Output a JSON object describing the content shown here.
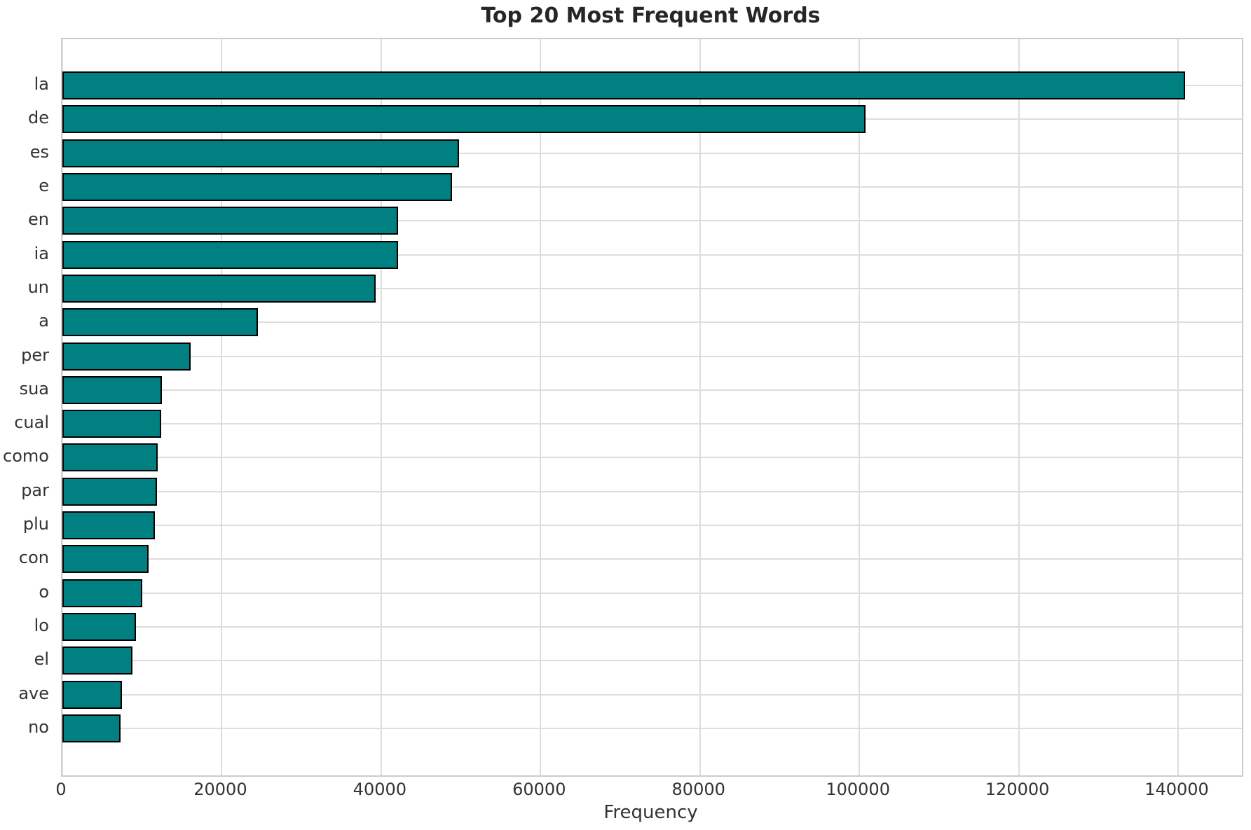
{
  "title": "Top 20 Most Frequent Words",
  "xlabel": "Frequency",
  "colors": {
    "bar_fill": "#008080",
    "bar_edge": "#000000",
    "gridline": "#dddddd",
    "spine": "#cccccc",
    "title_text": "#262626",
    "tick_text": "#333333",
    "background": "#ffffff"
  },
  "chart_data": {
    "type": "bar",
    "orientation": "horizontal",
    "title": "Top 20 Most Frequent Words",
    "xlabel": "Frequency",
    "ylabel": "",
    "grid": true,
    "legend": false,
    "categories": [
      "la",
      "de",
      "es",
      "e",
      "en",
      "ia",
      "un",
      "a",
      "per",
      "sua",
      "cual",
      "como",
      "par",
      "plu",
      "con",
      "o",
      "lo",
      "el",
      "ave",
      "no"
    ],
    "values": [
      140900,
      100800,
      49800,
      48900,
      42100,
      42100,
      39300,
      24500,
      16100,
      12500,
      12400,
      12000,
      11900,
      11600,
      10800,
      10000,
      9200,
      8800,
      7500,
      7300
    ],
    "xlim": [
      0,
      148000
    ],
    "xticks": [
      0,
      20000,
      40000,
      60000,
      80000,
      100000,
      120000,
      140000
    ],
    "xtick_labels": [
      "0",
      "20000",
      "40000",
      "60000",
      "80000",
      "100000",
      "120000",
      "140000"
    ]
  }
}
